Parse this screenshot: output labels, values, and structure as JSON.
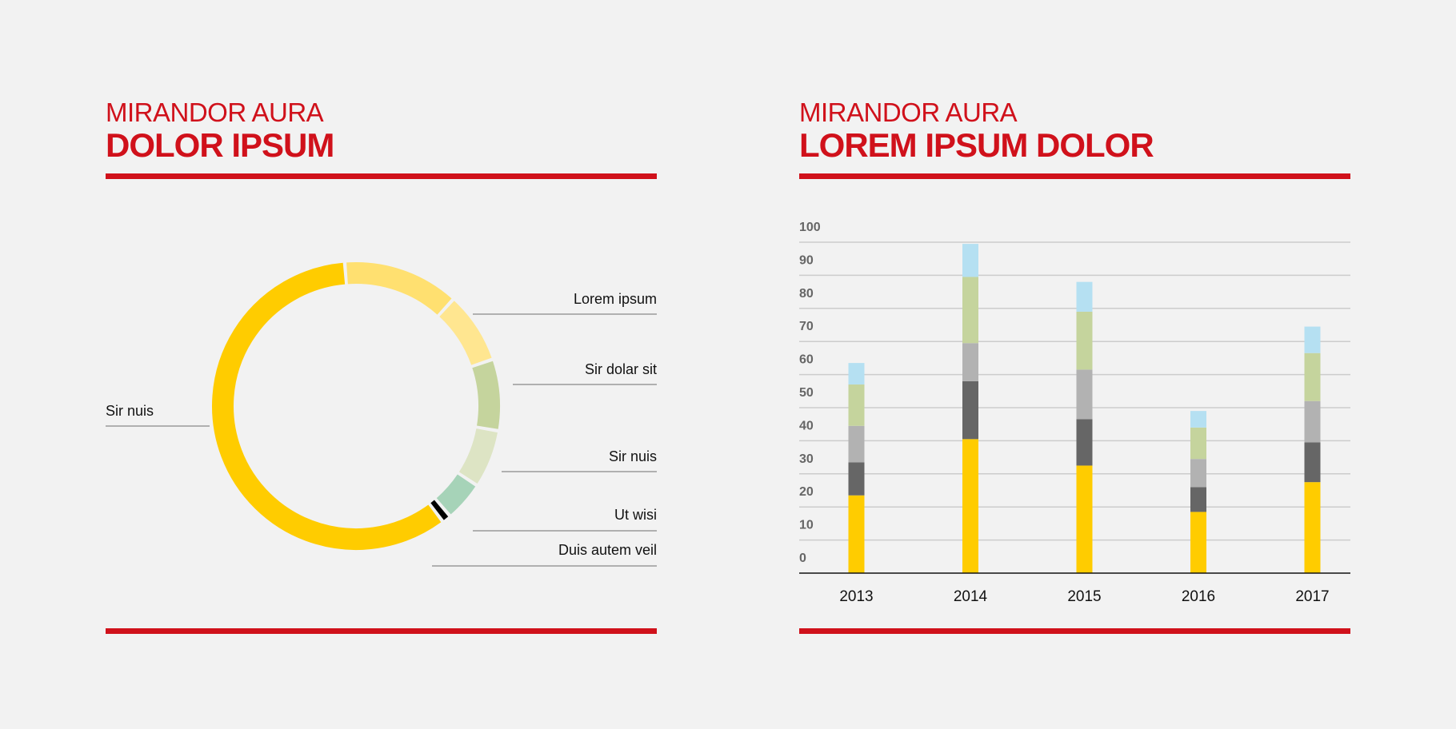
{
  "left": {
    "kicker": "MIRANDOR AURA",
    "title": "DOLOR IPSUM"
  },
  "right": {
    "kicker": "MIRANDOR AURA",
    "title": "LOREM IPSUM DOLOR"
  },
  "colors": {
    "brand_red": "#d0111b",
    "yellow": "#ffcc00",
    "light_yellow": "#ffe070",
    "pale_yellow": "#ffe690",
    "sage": "#c5d49d",
    "pale_sage": "#dde4c4",
    "mint": "#a6d3b8",
    "black": "#000000",
    "dark_gray": "#666666",
    "light_gray": "#b2b2b2",
    "light_blue": "#b5e0f2"
  },
  "chart_data": [
    {
      "type": "pie",
      "variant": "donut",
      "slices": [
        {
          "label": "Lorem ipsum",
          "value": 13,
          "color": "#ffe070"
        },
        {
          "label": "Sir dolar sit",
          "value": 8,
          "color": "#ffe690"
        },
        {
          "label": "Sir nuis",
          "value": 8,
          "color": "#c5d49d"
        },
        {
          "label": "Ut wisi",
          "value": 6.5,
          "color": "#dde4c4"
        },
        {
          "label": "Duis autem veil",
          "value": 4.5,
          "color": "#a6d3b8"
        },
        {
          "label": "",
          "value": 1,
          "color": "#000000"
        },
        {
          "label": "Sir nuis",
          "value": 59,
          "color": "#ffcc00"
        }
      ]
    },
    {
      "type": "bar",
      "stacked": true,
      "categories": [
        "2013",
        "2014",
        "2015",
        "2016",
        "2017"
      ],
      "series": [
        {
          "color": "#ffcc00",
          "values": [
            23.5,
            40.5,
            32.5,
            18.5,
            27.5
          ]
        },
        {
          "color": "#666666",
          "values": [
            10,
            17.5,
            14,
            7.5,
            12
          ]
        },
        {
          "color": "#b2b2b2",
          "values": [
            11,
            11.5,
            15,
            8.5,
            12.5
          ]
        },
        {
          "color": "#c5d49d",
          "values": [
            12.5,
            20,
            17.5,
            9.5,
            14.5
          ]
        },
        {
          "color": "#b5e0f2",
          "values": [
            6.5,
            10,
            9,
            5,
            8
          ]
        }
      ],
      "yticks": [
        "0",
        "10",
        "20",
        "30",
        "40",
        "50",
        "60",
        "70",
        "80",
        "90",
        "100"
      ],
      "ylim": [
        0,
        100
      ],
      "grid": true
    }
  ]
}
